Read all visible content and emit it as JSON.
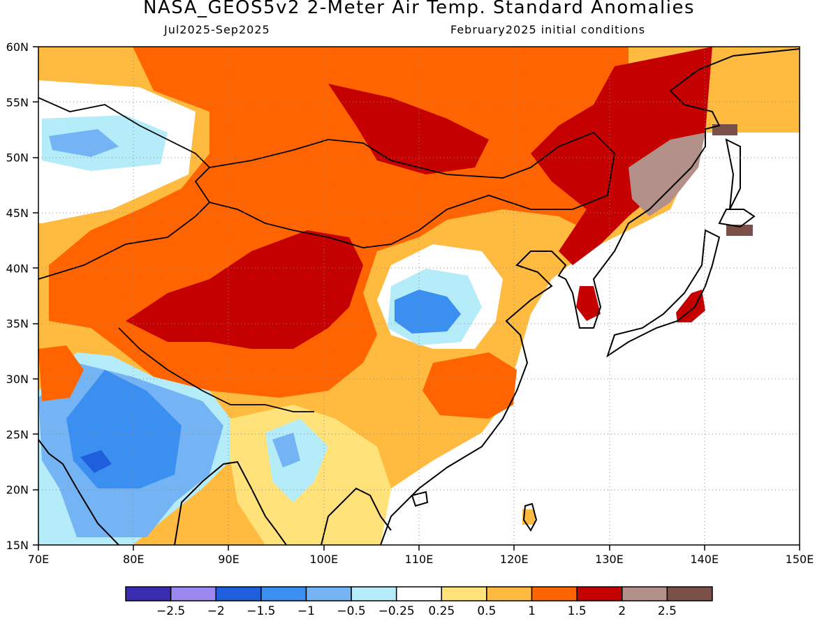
{
  "header": {
    "title": "NASA_GEOS5v2 2-Meter Air Temp. Standard Anomalies",
    "period": "Jul2025-Sep2025",
    "init": "February2025 initial conditions"
  },
  "map": {
    "lon_range": [
      70,
      150
    ],
    "lat_range": [
      15,
      60
    ],
    "lon_ticks": [
      "70E",
      "80E",
      "90E",
      "100E",
      "110E",
      "120E",
      "130E",
      "140E",
      "150E"
    ],
    "lat_ticks": [
      "15N",
      "20N",
      "25N",
      "30N",
      "35N",
      "40N",
      "45N",
      "50N",
      "55N",
      "60N"
    ],
    "grid": "dotted"
  },
  "colorbar": {
    "colors": [
      "#3a2bb0",
      "#9a88f0",
      "#1f5fdc",
      "#3b8ff0",
      "#74b4f4",
      "#b4ecfa",
      "#ffffff",
      "#ffe27a",
      "#ffba40",
      "#ff6400",
      "#c40000",
      "#b4908a",
      "#7a5048"
    ],
    "labels": [
      "-2.5",
      "-2",
      "-1.5",
      "-1",
      "-0.5",
      "-0.25",
      "0.25",
      "0.5",
      "1",
      "1.5",
      "2",
      "2.5"
    ]
  }
}
